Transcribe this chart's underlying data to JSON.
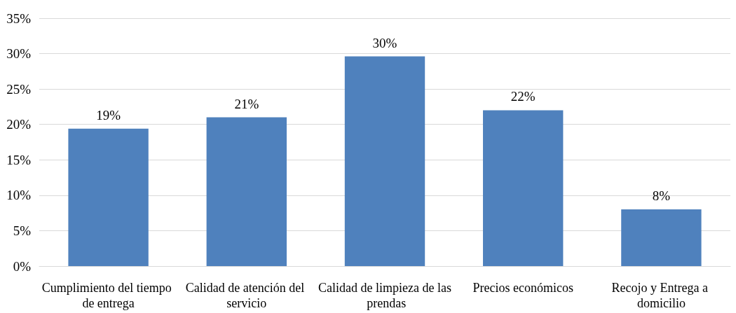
{
  "chart_data": {
    "type": "bar",
    "categories": [
      "Cumplimiento del tiempo de entrega",
      "Calidad de atención del servicio",
      "Calidad de limpieza de las prendas",
      "Precios económicos",
      "Recojo y Entrega a domicilio"
    ],
    "values": [
      19.4,
      21,
      29.6,
      22,
      8
    ],
    "value_labels": [
      "19%",
      "21%",
      "30%",
      "22%",
      "8%"
    ],
    "color": "#4f81bd",
    "ylim": [
      0,
      35
    ],
    "yticks": [
      {
        "value": 0,
        "label": "0%"
      },
      {
        "value": 5,
        "label": "5%"
      },
      {
        "value": 10,
        "label": "10%"
      },
      {
        "value": 15,
        "label": "15%"
      },
      {
        "value": 20,
        "label": "20%"
      },
      {
        "value": 25,
        "label": "25%"
      },
      {
        "value": 30,
        "label": "30%"
      },
      {
        "value": 35,
        "label": "35%"
      }
    ],
    "grid": "y"
  }
}
